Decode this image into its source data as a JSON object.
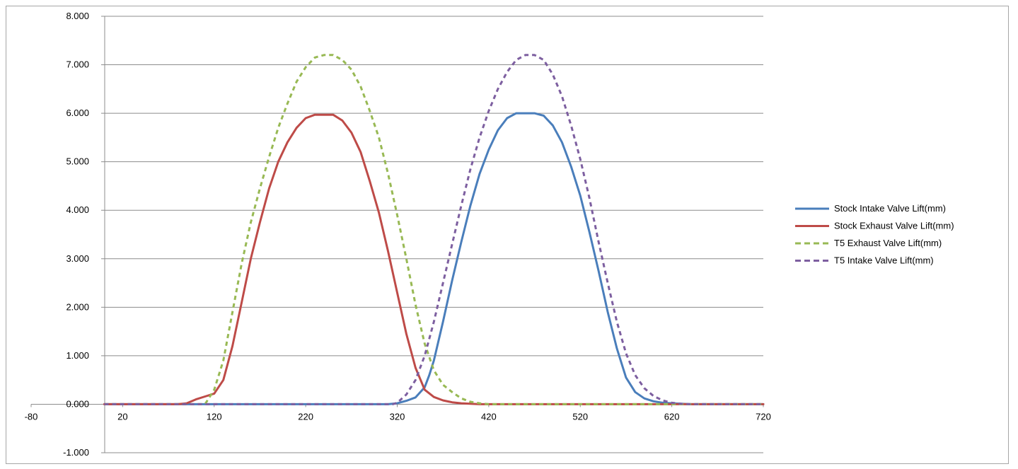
{
  "chart_data": {
    "type": "line",
    "title": "",
    "xlabel": "",
    "ylabel": "",
    "xlim": [
      -80,
      720
    ],
    "ylim": [
      -1.0,
      8.0
    ],
    "xticks": [
      "-80",
      "20",
      "120",
      "220",
      "320",
      "420",
      "520",
      "620",
      "720"
    ],
    "xtick_values": [
      -80,
      20,
      120,
      220,
      320,
      420,
      520,
      620,
      720
    ],
    "yticks": [
      "-1.000",
      "0.000",
      "1.000",
      "2.000",
      "3.000",
      "4.000",
      "5.000",
      "6.000",
      "7.000",
      "8.000"
    ],
    "ytick_values": [
      -1,
      0,
      1,
      2,
      3,
      4,
      5,
      6,
      7,
      8
    ],
    "grid": "horizontal",
    "legend_position": "right",
    "series": [
      {
        "name": "Stock Intake Valve Lift(mm)",
        "color": "#4a7ebb",
        "dash": "solid",
        "x": [
          0,
          310,
          320,
          330,
          340,
          350,
          355,
          360,
          370,
          380,
          390,
          400,
          410,
          420,
          430,
          440,
          450,
          460,
          470,
          480,
          490,
          500,
          510,
          520,
          530,
          540,
          550,
          560,
          570,
          580,
          590,
          600,
          610,
          620,
          630,
          640,
          720
        ],
        "y": [
          0,
          0,
          0.02,
          0.07,
          0.14,
          0.35,
          0.6,
          0.9,
          1.7,
          2.55,
          3.35,
          4.1,
          4.75,
          5.25,
          5.65,
          5.9,
          6.0,
          6.0,
          6.0,
          5.95,
          5.75,
          5.4,
          4.9,
          4.3,
          3.55,
          2.75,
          1.9,
          1.15,
          0.55,
          0.25,
          0.12,
          0.06,
          0.03,
          0.02,
          0.01,
          0,
          0
        ]
      },
      {
        "name": "Stock Exhaust Valve Lift(mm)",
        "color": "#be4b48",
        "dash": "solid",
        "x": [
          0,
          80,
          90,
          100,
          110,
          120,
          130,
          140,
          150,
          160,
          170,
          180,
          190,
          200,
          210,
          220,
          230,
          240,
          250,
          260,
          270,
          280,
          290,
          300,
          310,
          320,
          330,
          340,
          350,
          360,
          370,
          380,
          390,
          400,
          410,
          720
        ],
        "y": [
          0,
          0,
          0.02,
          0.1,
          0.16,
          0.22,
          0.5,
          1.2,
          2.1,
          3.0,
          3.75,
          4.45,
          5.0,
          5.4,
          5.7,
          5.9,
          5.97,
          5.97,
          5.97,
          5.85,
          5.6,
          5.2,
          4.6,
          3.95,
          3.15,
          2.3,
          1.45,
          0.75,
          0.3,
          0.15,
          0.08,
          0.04,
          0.02,
          0.01,
          0,
          0
        ]
      },
      {
        "name": "T5 Exhaust Valve Lift(mm)",
        "color": "#98b954",
        "dash": "dashed",
        "x": [
          0,
          110,
          120,
          130,
          140,
          150,
          160,
          170,
          180,
          190,
          200,
          210,
          220,
          230,
          240,
          250,
          260,
          270,
          280,
          290,
          300,
          310,
          320,
          330,
          340,
          350,
          360,
          370,
          380,
          390,
          400,
          410,
          420,
          720
        ],
        "y": [
          0,
          0,
          0.3,
          0.9,
          1.9,
          2.9,
          3.75,
          4.45,
          5.1,
          5.7,
          6.2,
          6.65,
          6.95,
          7.15,
          7.2,
          7.2,
          7.1,
          6.9,
          6.55,
          6.05,
          5.5,
          4.75,
          3.9,
          3.0,
          2.05,
          1.25,
          0.7,
          0.4,
          0.25,
          0.12,
          0.05,
          0.02,
          0,
          0
        ]
      },
      {
        "name": "T5 Intake Valve Lift(mm)",
        "color": "#7d5fa0",
        "dash": "dashed",
        "x": [
          0,
          315,
          320,
          330,
          340,
          350,
          360,
          370,
          380,
          390,
          400,
          410,
          420,
          430,
          440,
          450,
          460,
          470,
          480,
          490,
          500,
          510,
          520,
          530,
          540,
          550,
          560,
          570,
          580,
          590,
          600,
          610,
          620,
          630,
          640,
          720
        ],
        "y": [
          0,
          0,
          0.03,
          0.2,
          0.5,
          1.0,
          1.7,
          2.5,
          3.3,
          4.1,
          4.85,
          5.5,
          6.05,
          6.5,
          6.85,
          7.1,
          7.2,
          7.2,
          7.1,
          6.8,
          6.35,
          5.75,
          5.05,
          4.25,
          3.35,
          2.5,
          1.7,
          1.05,
          0.6,
          0.33,
          0.17,
          0.08,
          0.03,
          0.01,
          0,
          0
        ]
      }
    ]
  }
}
